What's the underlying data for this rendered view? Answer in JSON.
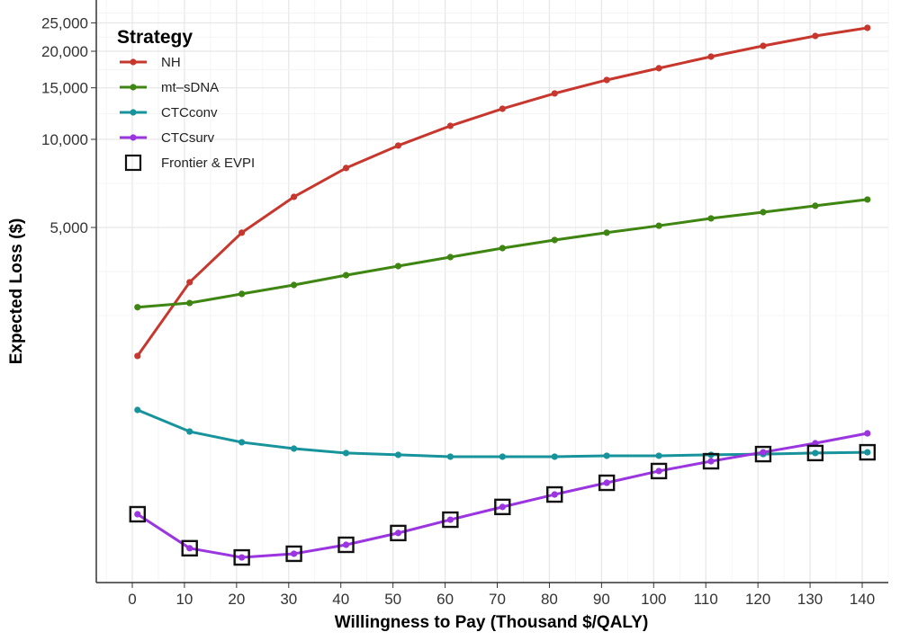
{
  "chart_data": {
    "type": "line",
    "title": "",
    "xlabel": "Willingness to Pay (Thousand $/QALY)",
    "ylabel": "Expected Loss ($)",
    "yscale": "log",
    "xlim": [
      -5,
      146
    ],
    "ylim": [
      340,
      29000
    ],
    "x_ticks": [
      0,
      10,
      20,
      30,
      40,
      50,
      60,
      70,
      80,
      90,
      100,
      110,
      120,
      130,
      140
    ],
    "x_tick_labels": [
      "0",
      "10",
      "20",
      "30",
      "40",
      "50",
      "60",
      "70",
      "80",
      "90",
      "100",
      "110",
      "120",
      "130",
      "140"
    ],
    "y_ticks": [
      5000,
      10000,
      15000,
      20000,
      25000
    ],
    "y_tick_labels": [
      "5,000",
      "10,000",
      "15,000",
      "20,000",
      "25,000"
    ],
    "grid": true,
    "legend": {
      "title": "Strategy",
      "position": "top-left",
      "frontier_label": "Frontier & EVPI"
    },
    "x": [
      1,
      11,
      21,
      31,
      41,
      51,
      61,
      71,
      81,
      91,
      101,
      111,
      121,
      131,
      141
    ],
    "series": [
      {
        "name": "NH",
        "color": "#c7372d",
        "values": [
          1820,
          3250,
          4800,
          6360,
          7980,
          9520,
          11120,
          12720,
          14350,
          15950,
          17500,
          19170,
          20860,
          22550,
          24040
        ]
      },
      {
        "name": "mt–sDNA",
        "color": "#3f8512",
        "values": [
          2670,
          2760,
          2965,
          3180,
          3435,
          3690,
          3960,
          4250,
          4530,
          4800,
          5070,
          5370,
          5640,
          5930,
          6230
        ]
      },
      {
        "name": "CTCconv",
        "color": "#17939b",
        "values": [
          1190,
          1004,
          923,
          878,
          848,
          836,
          824,
          824,
          824,
          830,
          830,
          836,
          841,
          848,
          853
        ]
      },
      {
        "name": "CTCsurv",
        "color": "#9a35e0",
        "values": [
          524,
          401,
          373,
          384,
          412,
          452,
          502,
          555,
          612,
          671,
          736,
          795,
          853,
          916,
          990
        ]
      }
    ],
    "frontier": [
      524,
      401,
      373,
      384,
      412,
      452,
      502,
      555,
      612,
      671,
      736,
      795,
      841,
      848,
      853
    ]
  }
}
